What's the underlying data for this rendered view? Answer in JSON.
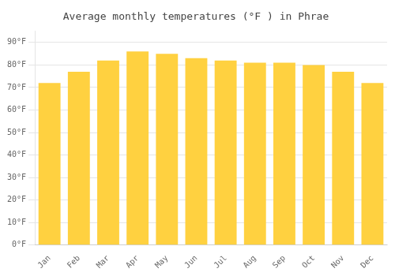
{
  "chart_data": {
    "type": "bar",
    "title": "Average monthly temperatures (°F ) in Phrae",
    "categories": [
      "Jan",
      "Feb",
      "Mar",
      "Apr",
      "May",
      "Jun",
      "Jul",
      "Aug",
      "Sep",
      "Oct",
      "Nov",
      "Dec"
    ],
    "values": [
      72,
      77,
      82,
      86,
      85,
      83,
      82,
      81,
      81,
      80,
      77,
      72
    ],
    "color": "#FFD140",
    "ylim": [
      0,
      95
    ],
    "yticks": [
      {
        "value": 0,
        "label": "0°F"
      },
      {
        "value": 10,
        "label": "10°F"
      },
      {
        "value": 20,
        "label": "20°F"
      },
      {
        "value": 30,
        "label": "30°F"
      },
      {
        "value": 40,
        "label": "40°F"
      },
      {
        "value": 50,
        "label": "50°F"
      },
      {
        "value": 60,
        "label": "60°F"
      },
      {
        "value": 70,
        "label": "70°F"
      },
      {
        "value": 80,
        "label": "80°F"
      },
      {
        "value": 90,
        "label": "90°F"
      }
    ],
    "grid": "y"
  }
}
